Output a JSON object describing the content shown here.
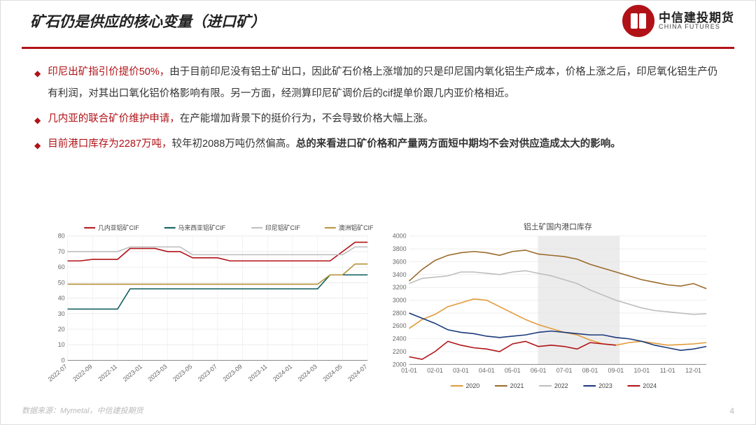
{
  "header": {
    "title": "矿石仍是供应的核心变量（进口矿）",
    "logo_cn": "中信建投期货",
    "logo_en": "CHINA FUTURES"
  },
  "bullets": [
    {
      "lead_red": "印尼出矿指引价提价50%，",
      "rest": "由于目前印尼没有铝土矿出口，因此矿石价格上涨增加的只是印尼国内氧化铝生产成本，价格上涨之后，印尼氧化铝生产仍有利润，对其出口氧化铝价格影响有限。另一方面，经测算印尼矿调价后的cif提单价跟几内亚价格相近。"
    },
    {
      "lead_red": "几内亚的联合矿价维护申请，",
      "rest": "在产能增加背景下的挺价行为，不会导致价格大幅上涨。"
    },
    {
      "lead_red": "目前港口库存为2287万吨，",
      "rest": "较年初2088万吨仍然偏高。",
      "bold_tail": "总的来看进口矿价格和产量两方面短中期均不会对供应造成太大的影响。"
    }
  ],
  "footer": "数据来源：Mymetal，中信建投期货",
  "page": "4",
  "chart1": {
    "type": "line",
    "legend": [
      "几内亚铝矿CIF",
      "马来西亚铝矿CIF",
      "印尼铝矿CIF",
      "澳洲铝矿CIF"
    ],
    "colors": [
      "#b01217",
      "#0a5a5a",
      "#bdbdbd",
      "#b59138"
    ],
    "yticks": [
      0,
      10,
      20,
      30,
      40,
      50,
      60,
      70,
      80
    ],
    "ylim": [
      0,
      80
    ],
    "xlabels": [
      "2022-07",
      "2022-09",
      "2022-11",
      "2023-01",
      "2023-03",
      "2023-05",
      "2023-07",
      "2023-09",
      "2023-11",
      "2024-01",
      "2024-03",
      "2024-05",
      "2024-07"
    ],
    "series": {
      "guinea": [
        64,
        64,
        65,
        65,
        65,
        72,
        72,
        72,
        70,
        70,
        66,
        66,
        66,
        64,
        64,
        64,
        64,
        64,
        64,
        64,
        64,
        64,
        70,
        76,
        76
      ],
      "malaysia": [
        33,
        33,
        33,
        33,
        33,
        46,
        46,
        46,
        46,
        46,
        46,
        46,
        46,
        46,
        46,
        46,
        46,
        46,
        46,
        46,
        46,
        55,
        55,
        55,
        55
      ],
      "indonesia": [
        70,
        70,
        70,
        70,
        70,
        73,
        73,
        73,
        73,
        73,
        68,
        68,
        68,
        68,
        68,
        68,
        68,
        68,
        68,
        68,
        68,
        68,
        68,
        73,
        73
      ],
      "australia": [
        49,
        49,
        49,
        49,
        49,
        49,
        49,
        49,
        49,
        49,
        49,
        49,
        49,
        49,
        49,
        49,
        49,
        49,
        49,
        49,
        49,
        55,
        55,
        62,
        62
      ]
    },
    "background": "#ffffff",
    "grid_color": "#e0e0e0",
    "axis_color": "#888",
    "line_width": 1.6
  },
  "chart2": {
    "type": "line",
    "title": "铝土矿国内港口库存",
    "legend": [
      "2020",
      "2021",
      "2022",
      "2023",
      "2024"
    ],
    "colors": [
      "#e39a3a",
      "#9a6a2a",
      "#bdbdbd",
      "#1a3a7a",
      "#b01217"
    ],
    "yticks": [
      2000,
      2200,
      2400,
      2600,
      2800,
      3000,
      3200,
      3400,
      3600,
      3800,
      4000
    ],
    "ylim": [
      2000,
      4000
    ],
    "xlabels": [
      "01-01",
      "02-01",
      "03-01",
      "04-01",
      "05-01",
      "06-01",
      "07-01",
      "08-01",
      "09-01",
      "10-01",
      "11-01",
      "12-01"
    ],
    "shade_x": [
      5.2,
      8.5
    ],
    "series": {
      "2020": [
        2560,
        2700,
        2780,
        2900,
        2960,
        3020,
        3000,
        2900,
        2800,
        2700,
        2620,
        2560,
        2500,
        2460,
        2380,
        2320,
        2300,
        2340,
        2360,
        2330,
        2300,
        2310,
        2320,
        2340
      ],
      "2021": [
        3300,
        3480,
        3620,
        3700,
        3740,
        3760,
        3740,
        3700,
        3760,
        3780,
        3720,
        3700,
        3680,
        3640,
        3560,
        3500,
        3440,
        3380,
        3320,
        3280,
        3240,
        3220,
        3260,
        3180
      ],
      "2022": [
        3260,
        3340,
        3360,
        3380,
        3440,
        3440,
        3420,
        3400,
        3440,
        3460,
        3420,
        3380,
        3320,
        3260,
        3160,
        3080,
        3000,
        2940,
        2880,
        2840,
        2820,
        2800,
        2780,
        2790
      ],
      "2023": [
        2800,
        2720,
        2640,
        2540,
        2500,
        2480,
        2440,
        2420,
        2440,
        2460,
        2500,
        2520,
        2500,
        2480,
        2460,
        2460,
        2420,
        2400,
        2360,
        2300,
        2260,
        2220,
        2240,
        2280
      ],
      "2024": [
        2120,
        2080,
        2200,
        2360,
        2300,
        2260,
        2240,
        2200,
        2320,
        2360,
        2280,
        2300,
        2280,
        2240,
        2340,
        2320,
        2300
      ]
    },
    "background": "#ffffff",
    "grid_color": "#e4e4e4",
    "axis_color": "#888",
    "line_width": 1.6
  }
}
